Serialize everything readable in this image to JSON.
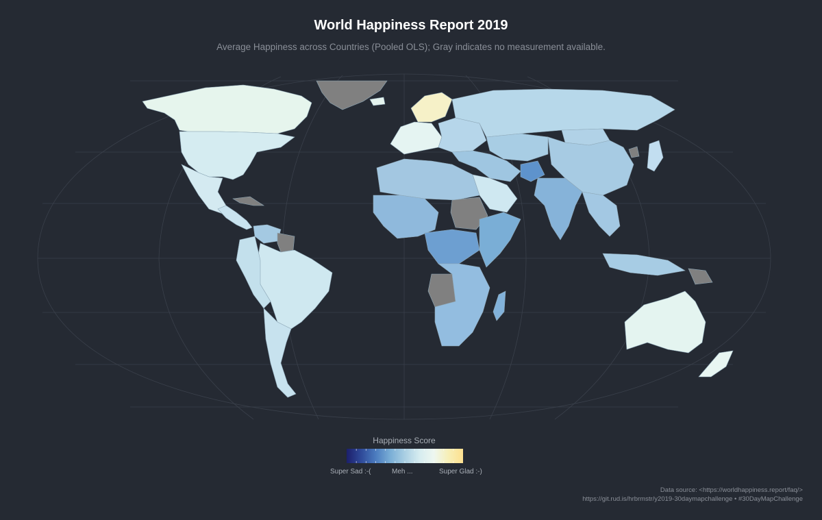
{
  "title": "World Happiness Report 2019",
  "subtitle": "Average Happiness across Countries (Pooled OLS); Gray indicates no measurement available.",
  "legend": {
    "title": "Happiness Score",
    "labels": [
      "Super Sad :-(",
      "Meh ...",
      "Super Glad :-)"
    ],
    "gradient": [
      "#1c1f6b",
      "#2f4a99",
      "#4b7cbf",
      "#7aaed6",
      "#aacfe3",
      "#d6ecf0",
      "#eef7f0",
      "#f7efb6",
      "#fde08f"
    ]
  },
  "caption": {
    "line1": "Data source: <https://worldhappiness.report/faq/>",
    "line2": "https://git.rud.is/hrbrmstr/y2019-30daymapchallenge • #30DayMapChallenge"
  },
  "colors": {
    "background": "#252a33",
    "graticule": "#3a404b",
    "no_data": "#808080",
    "border": "#7f98a8"
  },
  "map": {
    "projection": "Robinson",
    "regions": [
      {
        "name": "Greenland",
        "fill": "#808080"
      },
      {
        "name": "Canada",
        "fill": "#e6f5ed"
      },
      {
        "name": "USA",
        "fill": "#d5ecf1"
      },
      {
        "name": "Mexico",
        "fill": "#d4eaf1"
      },
      {
        "name": "Central America",
        "fill": "#c9e3ef"
      },
      {
        "name": "Cuba",
        "fill": "#808080"
      },
      {
        "name": "Venezuela",
        "fill": "#a4c9e2"
      },
      {
        "name": "Guyana/Suriname",
        "fill": "#808080"
      },
      {
        "name": "Brazil",
        "fill": "#cfe8f0"
      },
      {
        "name": "Andes",
        "fill": "#c3e0ec"
      },
      {
        "name": "Argentina",
        "fill": "#c7e2ee"
      },
      {
        "name": "Iceland",
        "fill": "#e4f3ee"
      },
      {
        "name": "Nordics",
        "fill": "#f6f1c8"
      },
      {
        "name": "Western Europe",
        "fill": "#e5f4f2"
      },
      {
        "name": "Eastern Europe",
        "fill": "#b6d6ea"
      },
      {
        "name": "Russia",
        "fill": "#b7d8ea"
      },
      {
        "name": "Central Asia",
        "fill": "#a8cde4"
      },
      {
        "name": "China",
        "fill": "#a7cbe3"
      },
      {
        "name": "Mongolia",
        "fill": "#b1d2e7"
      },
      {
        "name": "North Korea",
        "fill": "#808080"
      },
      {
        "name": "Japan",
        "fill": "#c2def0"
      },
      {
        "name": "Middle East",
        "fill": "#9fc6e1"
      },
      {
        "name": "Saudi Arabia",
        "fill": "#cfe8f1"
      },
      {
        "name": "Afghanistan",
        "fill": "#5e93cc"
      },
      {
        "name": "India",
        "fill": "#86b3d9"
      },
      {
        "name": "Southeast Asia",
        "fill": "#a3c8e3"
      },
      {
        "name": "Indonesia",
        "fill": "#a7cce4"
      },
      {
        "name": "Papua New Guinea",
        "fill": "#808080"
      },
      {
        "name": "North Africa",
        "fill": "#a3c7e1"
      },
      {
        "name": "West Africa",
        "fill": "#8fb9dc"
      },
      {
        "name": "Central Africa",
        "fill": "#6d9fd1"
      },
      {
        "name": "Sudan",
        "fill": "#808080"
      },
      {
        "name": "East Africa",
        "fill": "#7aaed6"
      },
      {
        "name": "Angola",
        "fill": "#808080"
      },
      {
        "name": "Southern Africa",
        "fill": "#93bde0"
      },
      {
        "name": "Madagascar",
        "fill": "#82b2da"
      },
      {
        "name": "Australia",
        "fill": "#e4f4f0"
      },
      {
        "name": "New Zealand",
        "fill": "#e8f6f2"
      }
    ]
  }
}
